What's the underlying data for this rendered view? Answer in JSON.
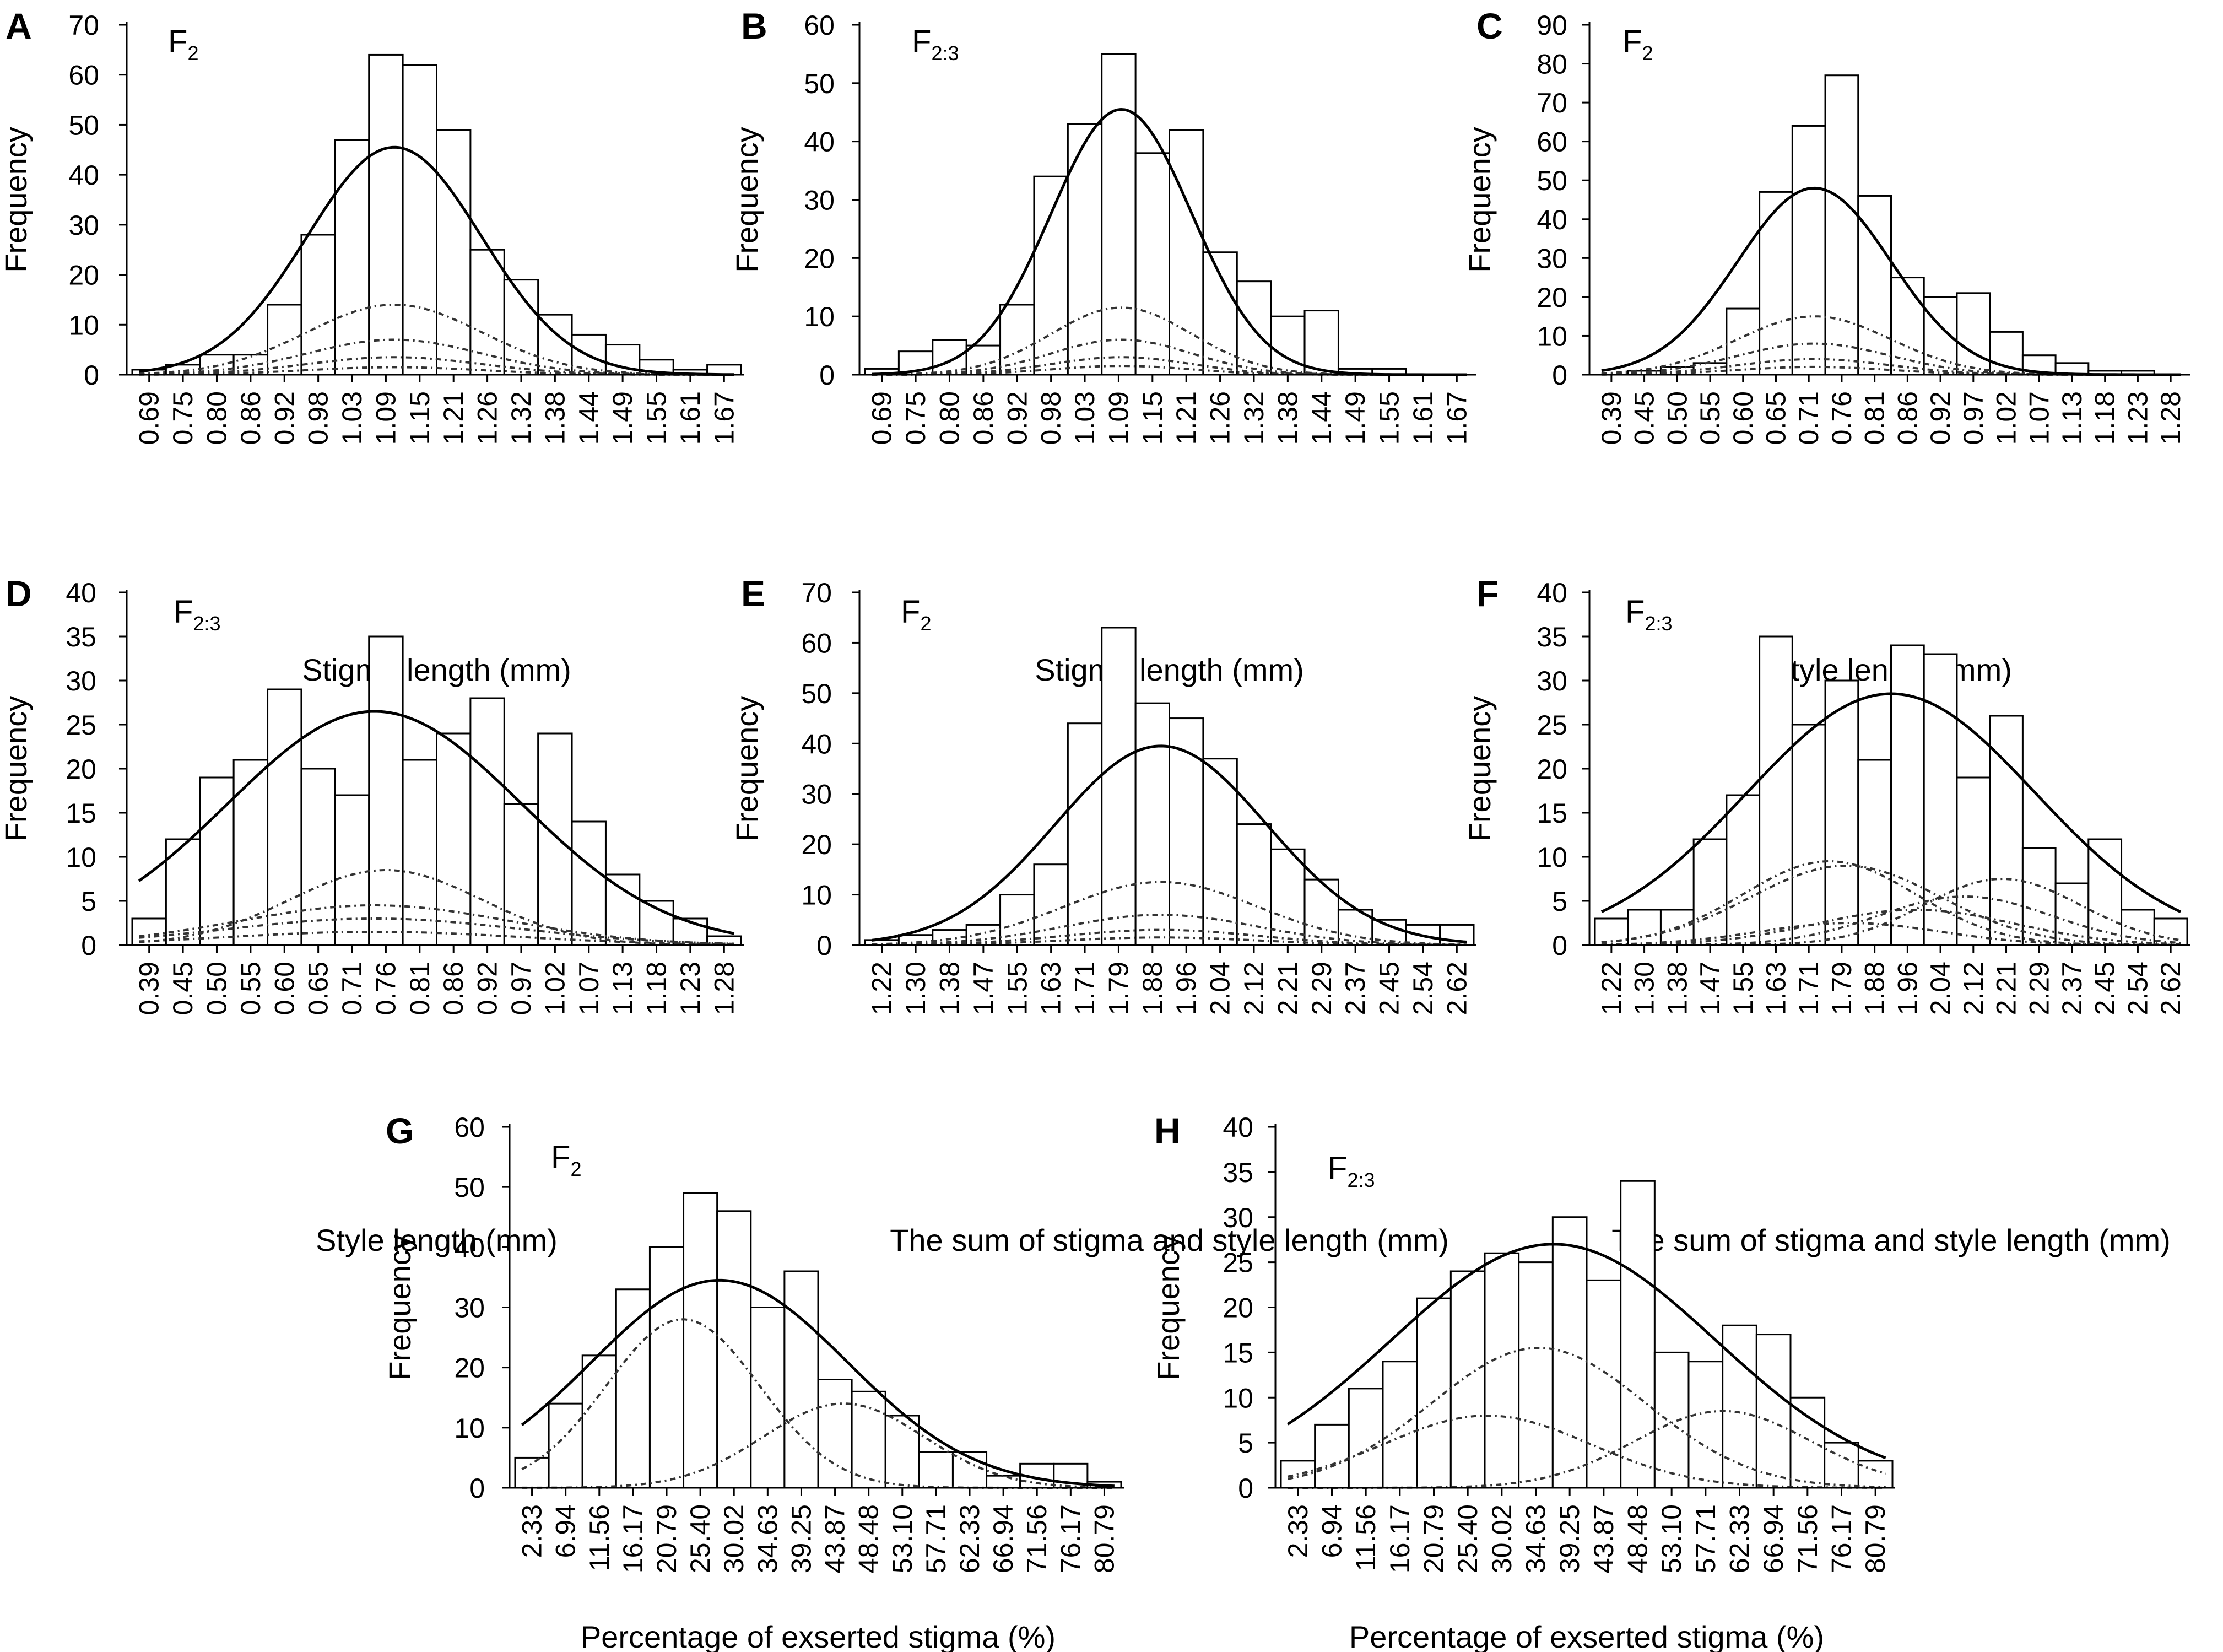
{
  "chart_data": [
    {
      "type": "bar",
      "panel": "A",
      "generation": "F",
      "generation_sub": "2",
      "ylabel": "Frequency",
      "xlabel": "Stigma length (mm)",
      "yticks": [
        0,
        10,
        20,
        30,
        40,
        50,
        60,
        70
      ],
      "ylim": [
        0,
        70
      ],
      "categories": [
        "0.69",
        "0.75",
        "0.80",
        "0.86",
        "0.92",
        "0.98",
        "1.03",
        "1.09",
        "1.15",
        "1.21",
        "1.26",
        "1.32",
        "1.38",
        "1.44",
        "1.49",
        "1.55",
        "1.61",
        "1.67"
      ],
      "values": [
        1,
        2,
        4,
        4,
        14,
        28,
        47,
        64,
        62,
        49,
        25,
        19,
        12,
        8,
        6,
        3,
        1,
        2
      ],
      "fit": {
        "mean": 1.125,
        "sd": 0.155,
        "peak": 45.5
      },
      "components": [
        {
          "mean": 1.125,
          "sd": 0.155,
          "peak": 14
        },
        {
          "mean": 1.125,
          "sd": 0.155,
          "peak": 7
        },
        {
          "mean": 1.125,
          "sd": 0.155,
          "peak": 3.5
        },
        {
          "mean": 1.125,
          "sd": 0.155,
          "peak": 1.5
        }
      ]
    },
    {
      "type": "bar",
      "panel": "B",
      "generation": "F",
      "generation_sub": "2:3",
      "ylabel": "Frequency",
      "xlabel": "Stigma length (mm)",
      "yticks": [
        0,
        10,
        20,
        30,
        40,
        50,
        60
      ],
      "ylim": [
        0,
        60
      ],
      "categories": [
        "0.69",
        "0.75",
        "0.80",
        "0.86",
        "0.92",
        "0.98",
        "1.03",
        "1.09",
        "1.15",
        "1.21",
        "1.26",
        "1.32",
        "1.38",
        "1.44",
        "1.49",
        "1.55",
        "1.61",
        "1.67"
      ],
      "values": [
        1,
        4,
        6,
        5,
        12,
        34,
        43,
        55,
        38,
        42,
        21,
        16,
        10,
        11,
        1,
        1,
        0,
        0
      ],
      "fit": {
        "mean": 1.115,
        "sd": 0.125,
        "peak": 45.5
      },
      "components": [
        {
          "mean": 1.115,
          "sd": 0.125,
          "peak": 11.5
        },
        {
          "mean": 1.115,
          "sd": 0.125,
          "peak": 6
        },
        {
          "mean": 1.115,
          "sd": 0.125,
          "peak": 3
        },
        {
          "mean": 1.115,
          "sd": 0.125,
          "peak": 1.5
        }
      ]
    },
    {
      "type": "bar",
      "panel": "C",
      "generation": "F",
      "generation_sub": "2",
      "ylabel": "Frequency",
      "xlabel": "Style length (mm)",
      "yticks": [
        0,
        10,
        20,
        30,
        40,
        50,
        60,
        70,
        80,
        90
      ],
      "ylim": [
        0,
        90
      ],
      "categories": [
        "0.39",
        "0.45",
        "0.50",
        "0.55",
        "0.60",
        "0.65",
        "0.71",
        "0.76",
        "0.81",
        "0.86",
        "0.92",
        "0.97",
        "1.02",
        "1.07",
        "1.13",
        "1.18",
        "1.23",
        "1.28"
      ],
      "values": [
        0,
        1,
        2,
        3,
        17,
        47,
        64,
        77,
        46,
        25,
        20,
        21,
        11,
        5,
        3,
        1,
        1,
        0
      ],
      "fit": {
        "mean": 0.76,
        "sd": 0.14,
        "peak": 48
      },
      "components": [
        {
          "mean": 0.76,
          "sd": 0.14,
          "peak": 15
        },
        {
          "mean": 0.76,
          "sd": 0.14,
          "peak": 8
        },
        {
          "mean": 0.76,
          "sd": 0.14,
          "peak": 4
        },
        {
          "mean": 0.76,
          "sd": 0.14,
          "peak": 2
        }
      ]
    },
    {
      "type": "bar",
      "panel": "D",
      "generation": "F",
      "generation_sub": "2:3",
      "ylabel": "Frequency",
      "xlabel": "Style length (mm)",
      "yticks": [
        0,
        5,
        10,
        15,
        20,
        25,
        30,
        35,
        40
      ],
      "ylim": [
        0,
        40
      ],
      "categories": [
        "0.39",
        "0.45",
        "0.50",
        "0.55",
        "0.60",
        "0.65",
        "0.71",
        "0.76",
        "0.81",
        "0.86",
        "0.92",
        "0.97",
        "1.02",
        "1.07",
        "1.13",
        "1.18",
        "1.23",
        "1.28"
      ],
      "values": [
        3,
        12,
        19,
        21,
        29,
        20,
        17,
        35,
        21,
        24,
        28,
        16,
        24,
        14,
        8,
        5,
        3,
        1
      ],
      "fit": {
        "mean": 0.79,
        "sd": 0.26,
        "peak": 26.5
      },
      "components": [
        {
          "mean": 0.81,
          "sd": 0.17,
          "peak": 8.5
        },
        {
          "mean": 0.79,
          "sd": 0.24,
          "peak": 4.5
        },
        {
          "mean": 0.79,
          "sd": 0.26,
          "peak": 3
        },
        {
          "mean": 0.79,
          "sd": 0.26,
          "peak": 1.5
        }
      ]
    },
    {
      "type": "bar",
      "panel": "E",
      "generation": "F",
      "generation_sub": "2",
      "ylabel": "Frequency",
      "xlabel": "The sum of stigma and style length (mm)",
      "yticks": [
        0,
        10,
        20,
        30,
        40,
        50,
        60,
        70
      ],
      "ylim": [
        0,
        70
      ],
      "categories": [
        "1.22",
        "1.30",
        "1.38",
        "1.47",
        "1.55",
        "1.63",
        "1.71",
        "1.79",
        "1.88",
        "1.96",
        "2.04",
        "2.12",
        "2.21",
        "2.29",
        "2.37",
        "2.45",
        "2.54",
        "2.62"
      ],
      "values": [
        1,
        2,
        3,
        4,
        10,
        16,
        44,
        63,
        48,
        45,
        37,
        24,
        19,
        13,
        7,
        5,
        4,
        4
      ],
      "fit": {
        "mean": 1.88,
        "sd": 0.25,
        "peak": 39.5
      },
      "components": [
        {
          "mean": 1.88,
          "sd": 0.23,
          "peak": 12.5
        },
        {
          "mean": 1.88,
          "sd": 0.23,
          "peak": 6
        },
        {
          "mean": 1.88,
          "sd": 0.23,
          "peak": 3
        },
        {
          "mean": 1.88,
          "sd": 0.23,
          "peak": 1.5
        }
      ]
    },
    {
      "type": "bar",
      "panel": "F",
      "generation": "F",
      "generation_sub": "2:3",
      "ylabel": "Frequency",
      "xlabel": "The sum of stigma and style length (mm)",
      "yticks": [
        0,
        5,
        10,
        15,
        20,
        25,
        30,
        35,
        40
      ],
      "ylim": [
        0,
        40
      ],
      "categories": [
        "1.22",
        "1.30",
        "1.38",
        "1.47",
        "1.55",
        "1.63",
        "1.71",
        "1.79",
        "1.88",
        "1.96",
        "2.04",
        "2.12",
        "2.21",
        "2.29",
        "2.37",
        "2.45",
        "2.54",
        "2.62"
      ],
      "values": [
        3,
        4,
        4,
        12,
        17,
        35,
        25,
        30,
        21,
        34,
        33,
        19,
        26,
        11,
        7,
        12,
        4,
        3
      ],
      "fit": {
        "mean": 1.9,
        "sd": 0.35,
        "peak": 28.5
      },
      "components": [
        {
          "mean": 1.75,
          "sd": 0.21,
          "peak": 9.5
        },
        {
          "mean": 1.79,
          "sd": 0.23,
          "peak": 9
        },
        {
          "mean": 2.17,
          "sd": 0.19,
          "peak": 7.5
        },
        {
          "mean": 2.08,
          "sd": 0.21,
          "peak": 5.5
        },
        {
          "mean": 1.96,
          "sd": 0.24,
          "peak": 4
        },
        {
          "mean": 1.8,
          "sd": 0.22,
          "peak": 2.5
        }
      ]
    },
    {
      "type": "bar",
      "panel": "G",
      "generation": "F",
      "generation_sub": "2",
      "ylabel": "Frequency",
      "xlabel": "Percentage of exserted stigma (%)",
      "yticks": [
        0,
        10,
        20,
        30,
        40,
        50,
        60
      ],
      "ylim": [
        0,
        60
      ],
      "categories": [
        "2.33",
        "6.94",
        "11.56",
        "16.17",
        "20.79",
        "25.40",
        "30.02",
        "34.63",
        "39.25",
        "43.87",
        "48.48",
        "53.10",
        "57.71",
        "62.33",
        "66.94",
        "71.56",
        "76.17",
        "80.79"
      ],
      "values": [
        5,
        14,
        22,
        33,
        40,
        49,
        46,
        30,
        36,
        18,
        16,
        12,
        6,
        6,
        2,
        4,
        4,
        1
      ],
      "fit": {
        "mean": 28.0,
        "sd": 17.5,
        "peak": 34.5
      },
      "components": [
        {
          "mean": 23.0,
          "sd": 10.5,
          "peak": 28
        },
        {
          "mean": 45.0,
          "sd": 11.0,
          "peak": 14
        }
      ]
    },
    {
      "type": "bar",
      "panel": "H",
      "generation": "F",
      "generation_sub": "2:3",
      "ylabel": "Frequency",
      "xlabel": "Percentage of exserted stigma (%)",
      "yticks": [
        0,
        5,
        10,
        15,
        20,
        25,
        30,
        35,
        40
      ],
      "ylim": [
        0,
        40
      ],
      "categories": [
        "2.33",
        "6.94",
        "11.56",
        "16.17",
        "20.79",
        "25.40",
        "30.02",
        "34.63",
        "39.25",
        "43.87",
        "48.48",
        "53.10",
        "57.71",
        "62.33",
        "66.94",
        "71.56",
        "76.17",
        "80.79"
      ],
      "values": [
        3,
        7,
        11,
        14,
        21,
        24,
        26,
        25,
        30,
        23,
        34,
        15,
        14,
        18,
        17,
        10,
        5,
        3
      ],
      "fit": {
        "mean": 37.0,
        "sd": 22.0,
        "peak": 27
      },
      "components": [
        {
          "mean": 35.0,
          "sd": 14.5,
          "peak": 15.5
        },
        {
          "mean": 28.0,
          "sd": 14.0,
          "peak": 8
        },
        {
          "mean": 60.0,
          "sd": 12.0,
          "peak": 8.5
        }
      ]
    }
  ]
}
